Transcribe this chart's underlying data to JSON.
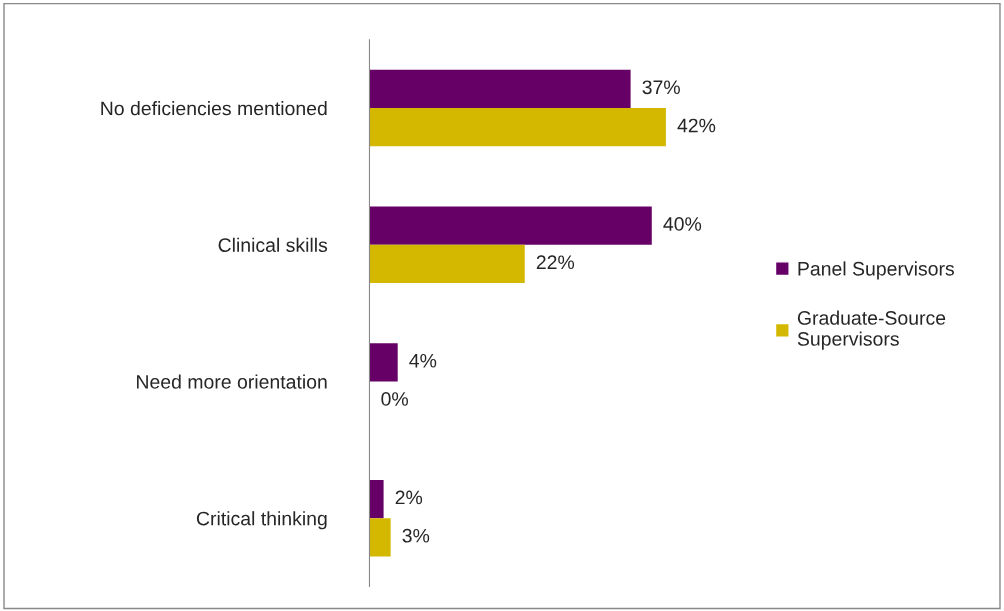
{
  "chart_data": {
    "type": "bar",
    "orientation": "horizontal",
    "categories": [
      "No deficiencies mentioned",
      "Clinical skills",
      "Need more orientation",
      "Critical thinking"
    ],
    "series": [
      {
        "name": "Panel Supervisors",
        "color": "#660066",
        "values": [
          37,
          40,
          4,
          2
        ],
        "value_labels": [
          "37%",
          "40%",
          "4%",
          "2%"
        ]
      },
      {
        "name": "Graduate-Source\nSupervisors",
        "color": "#d4b800",
        "values": [
          42,
          22,
          0,
          3
        ],
        "value_labels": [
          "42%",
          "22%",
          "0%",
          "3%"
        ]
      }
    ],
    "legend": "right",
    "grid": false
  }
}
